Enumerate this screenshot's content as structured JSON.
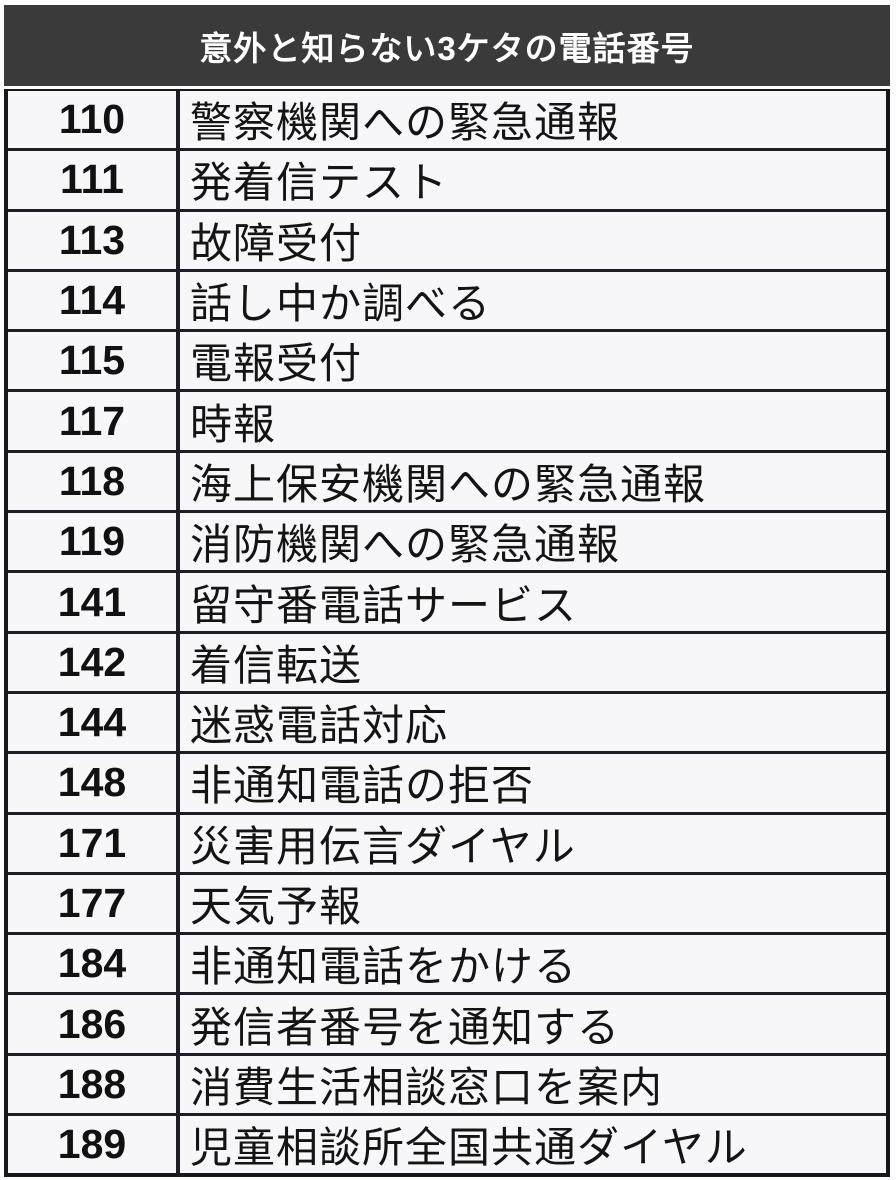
{
  "header": {
    "title": "意外と知らない3ケタの電話番号"
  },
  "table": {
    "rows": [
      {
        "number": "110",
        "description": "警察機関への緊急通報"
      },
      {
        "number": "111",
        "description": "発着信テスト"
      },
      {
        "number": "113",
        "description": "故障受付"
      },
      {
        "number": "114",
        "description": "話し中か調べる"
      },
      {
        "number": "115",
        "description": "電報受付"
      },
      {
        "number": "117",
        "description": "時報"
      },
      {
        "number": "118",
        "description": "海上保安機関への緊急通報"
      },
      {
        "number": "119",
        "description": "消防機関への緊急通報"
      },
      {
        "number": "141",
        "description": "留守番電話サービス"
      },
      {
        "number": "142",
        "description": "着信転送"
      },
      {
        "number": "144",
        "description": "迷惑電話対応"
      },
      {
        "number": "148",
        "description": "非通知電話の拒否"
      },
      {
        "number": "171",
        "description": "災害用伝言ダイヤル"
      },
      {
        "number": "177",
        "description": "天気予報"
      },
      {
        "number": "184",
        "description": "非通知電話をかける"
      },
      {
        "number": "186",
        "description": "発信者番号を通知する"
      },
      {
        "number": "188",
        "description": "消費生活相談窓口を案内"
      },
      {
        "number": "189",
        "description": "児童相談所全国共通ダイヤル"
      }
    ]
  },
  "colors": {
    "header_bg": "#3a3a3a",
    "header_text": "#ffffff",
    "row_bg": "#f7f7f9",
    "border": "#1e1e26",
    "text": "#141414"
  }
}
